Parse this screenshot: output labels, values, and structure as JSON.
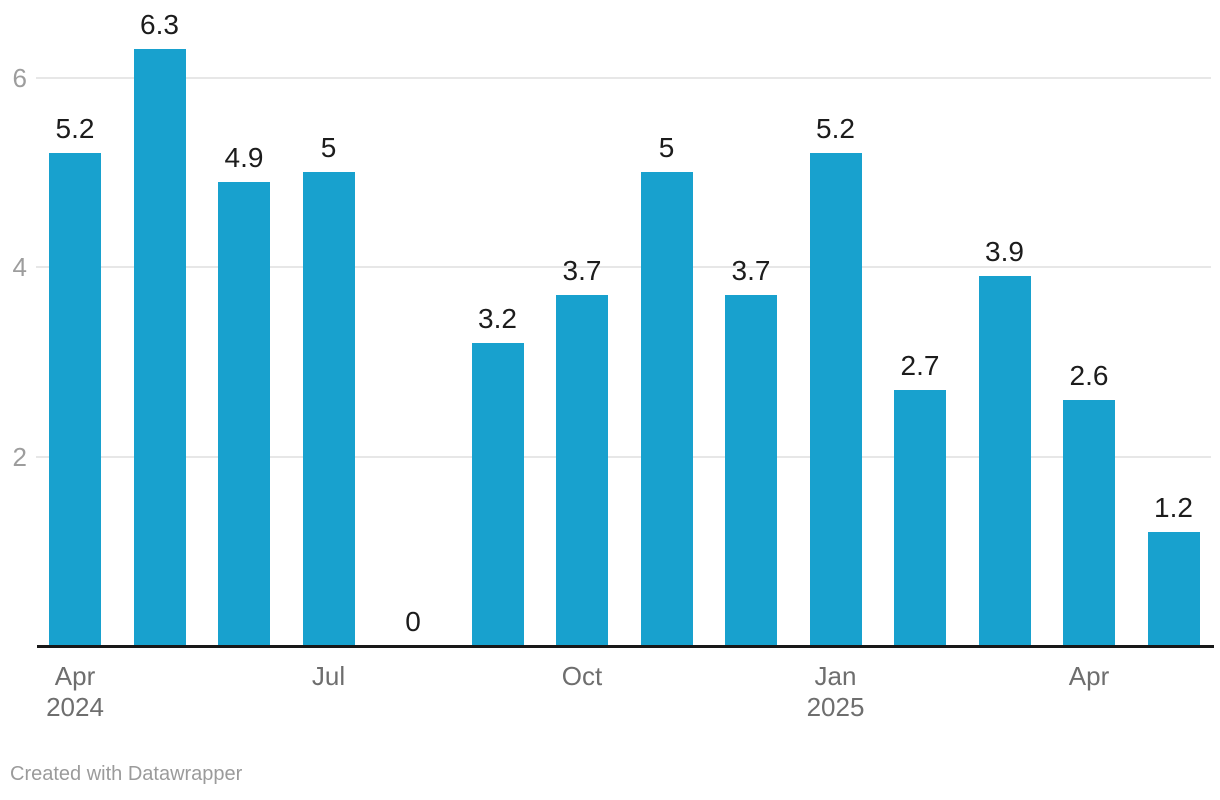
{
  "chart_data": {
    "type": "bar",
    "title": "",
    "xlabel": "",
    "ylabel": "",
    "x": [
      "Apr 2024",
      "May 2024",
      "Jun 2024",
      "Jul 2024",
      "Aug 2024",
      "Sep 2024",
      "Oct 2024",
      "Nov 2024",
      "Dec 2024",
      "Jan 2025",
      "Feb 2025",
      "Mar 2025",
      "Apr 2025",
      "May 2025"
    ],
    "values": [
      5.2,
      6.3,
      4.9,
      5,
      0,
      3.2,
      3.7,
      5,
      3.7,
      5.2,
      2.7,
      3.9,
      2.6,
      1.2
    ],
    "value_labels": [
      "5.2",
      "6.3",
      "4.9",
      "5",
      "0",
      "3.2",
      "3.7",
      "5",
      "3.7",
      "5.2",
      "2.7",
      "3.9",
      "2.6",
      "1.2"
    ],
    "ylim": [
      0,
      6.8
    ],
    "grid": true,
    "legend_position": "none",
    "y_axis": {
      "ticks": [
        {
          "value": 2,
          "label": "2"
        },
        {
          "value": 4,
          "label": "4"
        },
        {
          "value": 6,
          "label": "6"
        }
      ]
    },
    "x_axis": {
      "ticks": [
        {
          "bar_index": 0,
          "lines": [
            "Apr",
            "2024"
          ]
        },
        {
          "bar_index": 3,
          "lines": [
            "Jul"
          ]
        },
        {
          "bar_index": 6,
          "lines": [
            "Oct"
          ]
        },
        {
          "bar_index": 9,
          "lines": [
            "Jan",
            "2025"
          ]
        },
        {
          "bar_index": 12,
          "lines": [
            "Apr"
          ]
        }
      ]
    },
    "colors": {
      "bar": "#18a1ce",
      "value_label": "#1c1c1c",
      "axis_line": "#181818",
      "gridline": "#e7e7e7",
      "y_tick_label": "#9d9d9d",
      "x_tick_label": "#6e6e6e"
    }
  },
  "footer": {
    "credit_label": "Created with Datawrapper",
    "credit_color": "#9b9b9b"
  }
}
